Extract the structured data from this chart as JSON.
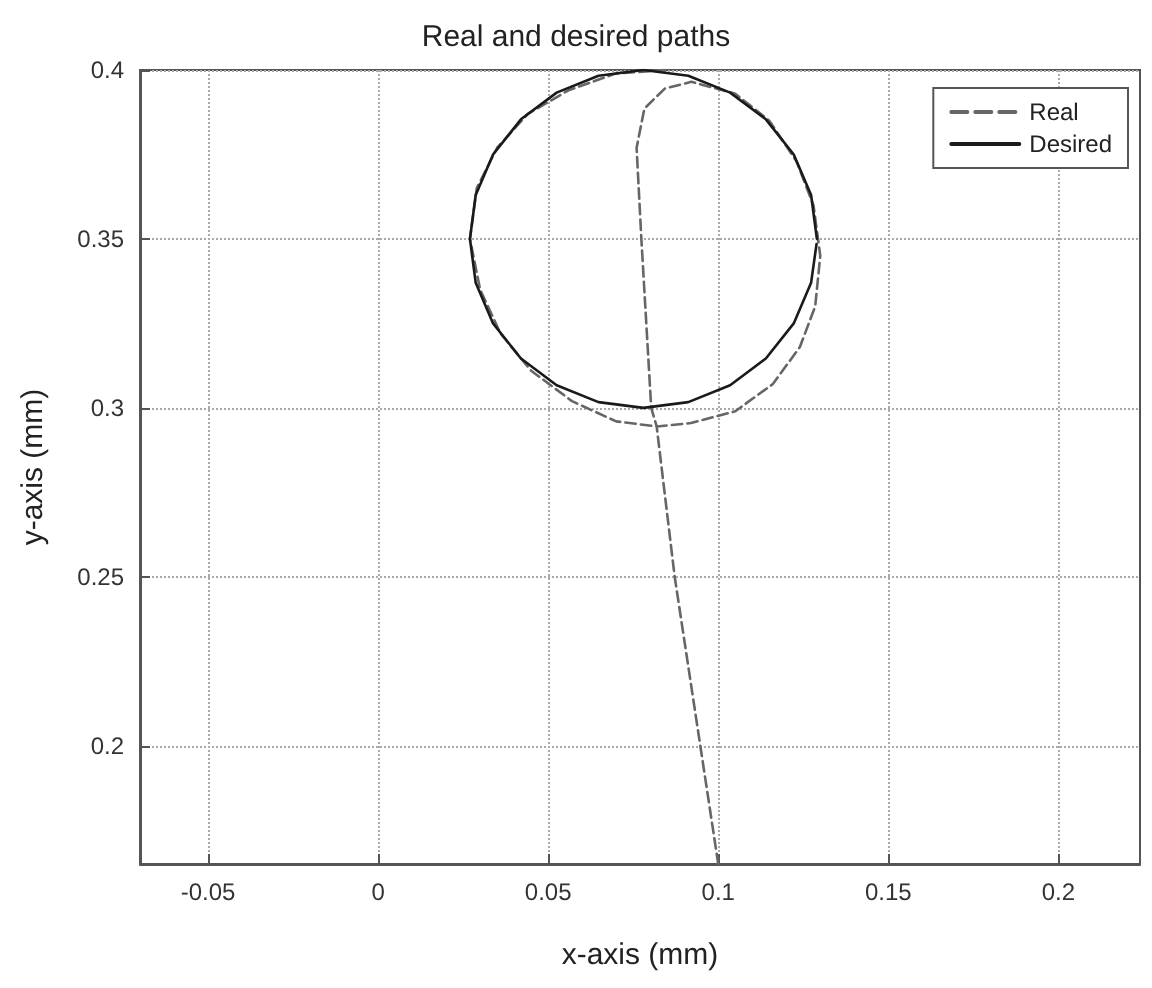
{
  "chart_data": {
    "type": "line",
    "title": "Real and desired paths",
    "xlabel": "x-axis (mm)",
    "ylabel": "y-axis (mm)",
    "xlim": [
      -0.07,
      0.224
    ],
    "ylim": [
      0.165,
      0.4
    ],
    "xticks": [
      -0.05,
      0,
      0.05,
      0.1,
      0.15,
      0.2
    ],
    "yticks": [
      0.2,
      0.25,
      0.3,
      0.35,
      0.4
    ],
    "grid": true,
    "legend": "top right",
    "marker": "none",
    "series": [
      {
        "name": "Real",
        "color": "#666666",
        "line_style": "dashed",
        "x": [
          0.1,
          0.0872,
          0.0819,
          0.0803,
          0.0774,
          0.076,
          0.0783,
          0.0843,
          0.0921,
          0.105,
          0.115,
          0.123,
          0.128,
          0.13,
          0.1285,
          0.124,
          0.116,
          0.105,
          0.092,
          0.082,
          0.07,
          0.057,
          0.045,
          0.036,
          0.03,
          0.027,
          0.029,
          0.035,
          0.044,
          0.056,
          0.07,
          0.085
        ],
        "values": [
          0.165,
          0.25,
          0.2945,
          0.3,
          0.35,
          0.377,
          0.3886,
          0.3945,
          0.3965,
          0.393,
          0.385,
          0.373,
          0.36,
          0.345,
          0.33,
          0.318,
          0.307,
          0.299,
          0.2955,
          0.2945,
          0.296,
          0.302,
          0.311,
          0.322,
          0.335,
          0.35,
          0.365,
          0.377,
          0.387,
          0.394,
          0.399,
          0.4
        ]
      },
      {
        "name": "Desired",
        "color": "#1a1a1a",
        "line_style": "solid",
        "x": [
          0.129,
          0.1273,
          0.1222,
          0.114,
          0.1035,
          0.0912,
          0.078,
          0.0648,
          0.0525,
          0.042,
          0.0338,
          0.0287,
          0.027,
          0.0287,
          0.0338,
          0.042,
          0.0525,
          0.0648,
          0.078,
          0.0912,
          0.1035,
          0.114,
          0.1222,
          0.1273,
          0.1289
        ],
        "values": [
          0.35,
          0.363,
          0.375,
          0.3854,
          0.3933,
          0.3983,
          0.4,
          0.3983,
          0.3933,
          0.3854,
          0.375,
          0.363,
          0.35,
          0.337,
          0.325,
          0.3146,
          0.3067,
          0.3017,
          0.3,
          0.3017,
          0.3067,
          0.3146,
          0.325,
          0.337,
          0.3485
        ]
      }
    ]
  }
}
